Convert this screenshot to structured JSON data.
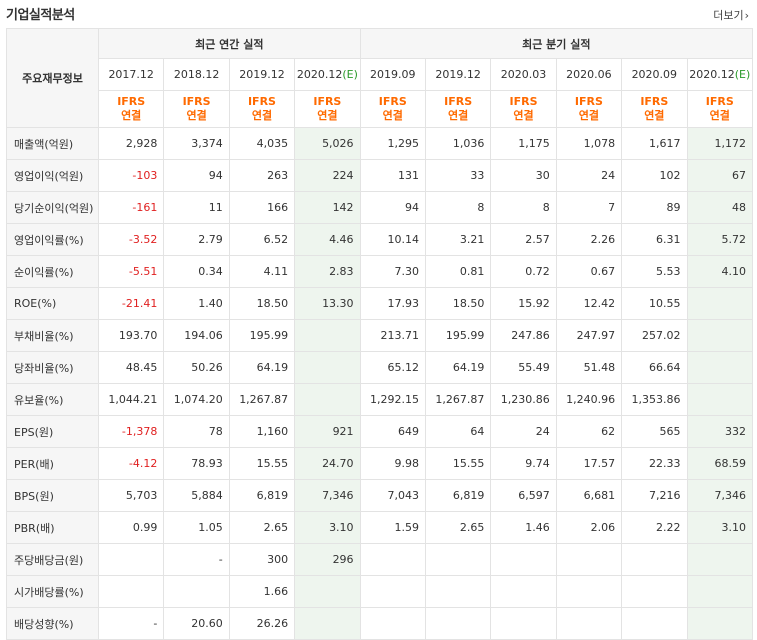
{
  "page": {
    "title": "기업실적분석",
    "more_label": "더보기",
    "more_icon": "chevron-right-icon"
  },
  "table": {
    "row_header_label": "주요재무정보",
    "groups": {
      "annual": "최근 연간 실적",
      "quarter": "최근 분기 실적"
    },
    "periods": [
      {
        "label": "2017.12",
        "est": false
      },
      {
        "label": "2018.12",
        "est": false
      },
      {
        "label": "2019.12",
        "est": false
      },
      {
        "label": "2020.12",
        "est": true,
        "mark": "(E)"
      },
      {
        "label": "2019.09",
        "est": false
      },
      {
        "label": "2019.12",
        "est": false
      },
      {
        "label": "2020.03",
        "est": false
      },
      {
        "label": "2020.06",
        "est": false
      },
      {
        "label": "2020.09",
        "est": false
      },
      {
        "label": "2020.12",
        "est": true,
        "mark": "(E)"
      }
    ],
    "basis": [
      "IFRS",
      "연결"
    ],
    "rows": [
      {
        "label": "매출액(억원)",
        "group_start": true,
        "values": [
          "2,928",
          "3,374",
          "4,035",
          "5,026",
          "1,295",
          "1,036",
          "1,175",
          "1,078",
          "1,617",
          "1,172"
        ]
      },
      {
        "label": "영업이익(억원)",
        "group_start": false,
        "values": [
          "-103",
          "94",
          "263",
          "224",
          "131",
          "33",
          "30",
          "24",
          "102",
          "67"
        ]
      },
      {
        "label": "당기순이익(억원)",
        "group_start": false,
        "values": [
          "-161",
          "11",
          "166",
          "142",
          "94",
          "8",
          "8",
          "7",
          "89",
          "48"
        ]
      },
      {
        "label": "영업이익률(%)",
        "group_start": true,
        "values": [
          "-3.52",
          "2.79",
          "6.52",
          "4.46",
          "10.14",
          "3.21",
          "2.57",
          "2.26",
          "6.31",
          "5.72"
        ]
      },
      {
        "label": "순이익률(%)",
        "group_start": false,
        "values": [
          "-5.51",
          "0.34",
          "4.11",
          "2.83",
          "7.30",
          "0.81",
          "0.72",
          "0.67",
          "5.53",
          "4.10"
        ]
      },
      {
        "label": "ROE(%)",
        "group_start": false,
        "values": [
          "-21.41",
          "1.40",
          "18.50",
          "13.30",
          "17.93",
          "18.50",
          "15.92",
          "12.42",
          "10.55",
          ""
        ]
      },
      {
        "label": "부채비율(%)",
        "group_start": true,
        "values": [
          "193.70",
          "194.06",
          "195.99",
          "",
          "213.71",
          "195.99",
          "247.86",
          "247.97",
          "257.02",
          ""
        ]
      },
      {
        "label": "당좌비율(%)",
        "group_start": false,
        "values": [
          "48.45",
          "50.26",
          "64.19",
          "",
          "65.12",
          "64.19",
          "55.49",
          "51.48",
          "66.64",
          ""
        ]
      },
      {
        "label": "유보율(%)",
        "group_start": false,
        "values": [
          "1,044.21",
          "1,074.20",
          "1,267.87",
          "",
          "1,292.15",
          "1,267.87",
          "1,230.86",
          "1,240.96",
          "1,353.86",
          ""
        ]
      },
      {
        "label": "EPS(원)",
        "group_start": true,
        "values": [
          "-1,378",
          "78",
          "1,160",
          "921",
          "649",
          "64",
          "24",
          "62",
          "565",
          "332"
        ]
      },
      {
        "label": "PER(배)",
        "group_start": false,
        "values": [
          "-4.12",
          "78.93",
          "15.55",
          "24.70",
          "9.98",
          "15.55",
          "9.74",
          "17.57",
          "22.33",
          "68.59"
        ]
      },
      {
        "label": "BPS(원)",
        "group_start": false,
        "values": [
          "5,703",
          "5,884",
          "6,819",
          "7,346",
          "7,043",
          "6,819",
          "6,597",
          "6,681",
          "7,216",
          "7,346"
        ]
      },
      {
        "label": "PBR(배)",
        "group_start": false,
        "values": [
          "0.99",
          "1.05",
          "2.65",
          "3.10",
          "1.59",
          "2.65",
          "1.46",
          "2.06",
          "2.22",
          "3.10"
        ]
      },
      {
        "label": "주당배당금(원)",
        "group_start": true,
        "values": [
          "",
          "-",
          "300",
          "296",
          "",
          "",
          "",
          "",
          "",
          ""
        ]
      },
      {
        "label": "시가배당률(%)",
        "group_start": false,
        "values": [
          "",
          "",
          "1.66",
          "",
          "",
          "",
          "",
          "",
          "",
          ""
        ]
      },
      {
        "label": "배당성향(%)",
        "group_start": false,
        "values": [
          "-",
          "20.60",
          "26.26",
          "",
          "",
          "",
          "",
          "",
          "",
          ""
        ]
      }
    ]
  },
  "colors": {
    "negative": "#e02020",
    "ifrs": "#ff6a00",
    "estimate_bg": "#eef5ee",
    "estimate_mark": "#2a9a2a",
    "header_bg": "#f6f6f6"
  }
}
